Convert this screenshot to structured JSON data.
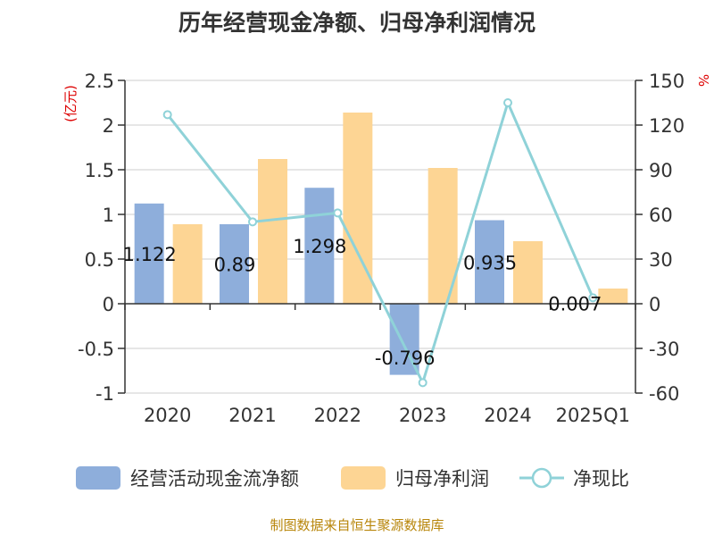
{
  "title": "历年经营现金净额、归母净利润情况",
  "source": "制图数据来自恒生聚源数据库",
  "colors": {
    "ocf": "#8eaedb",
    "profit": "#fdd594",
    "ratio": "#8fd2d8",
    "axis": "#333333",
    "grid": "#cccccc",
    "unit": "#dd0000",
    "source": "#b8860b",
    "text": "#333333"
  },
  "chart_data": {
    "type": "bar",
    "title": "历年经营现金净额、归母净利润情况",
    "categories": [
      "2020",
      "2021",
      "2022",
      "2023",
      "2024",
      "2025Q1"
    ],
    "y_left": {
      "label": "(亿元)",
      "min": -1,
      "max": 2.5,
      "ticks": [
        "2.5",
        "2",
        "1.5",
        "1",
        "0.5",
        "0",
        "-0.5",
        "-1"
      ],
      "tick_values": [
        2.5,
        2,
        1.5,
        1,
        0.5,
        0,
        -0.5,
        -1
      ]
    },
    "y_right": {
      "label": "%",
      "min": -60,
      "max": 150,
      "ticks": [
        "150",
        "120",
        "90",
        "60",
        "30",
        "0",
        "-30",
        "-60"
      ],
      "tick_values": [
        150,
        120,
        90,
        60,
        30,
        0,
        -30,
        -60
      ]
    },
    "series": [
      {
        "name": "经营活动现金流净额",
        "type": "bar",
        "axis": "left",
        "values": [
          1.122,
          0.89,
          1.298,
          -0.796,
          0.935,
          0.007
        ],
        "labels": [
          "1.122",
          "0.89",
          "1.298",
          "-0.796",
          "0.935",
          "0.007"
        ]
      },
      {
        "name": "归母净利润",
        "type": "bar",
        "axis": "left",
        "values": [
          0.89,
          1.62,
          2.14,
          1.52,
          0.7,
          0.17
        ]
      },
      {
        "name": "净现比",
        "type": "line",
        "axis": "right",
        "values": [
          127,
          55,
          61,
          -53,
          135,
          4
        ]
      }
    ],
    "legend": {
      "position": "bottom"
    }
  }
}
